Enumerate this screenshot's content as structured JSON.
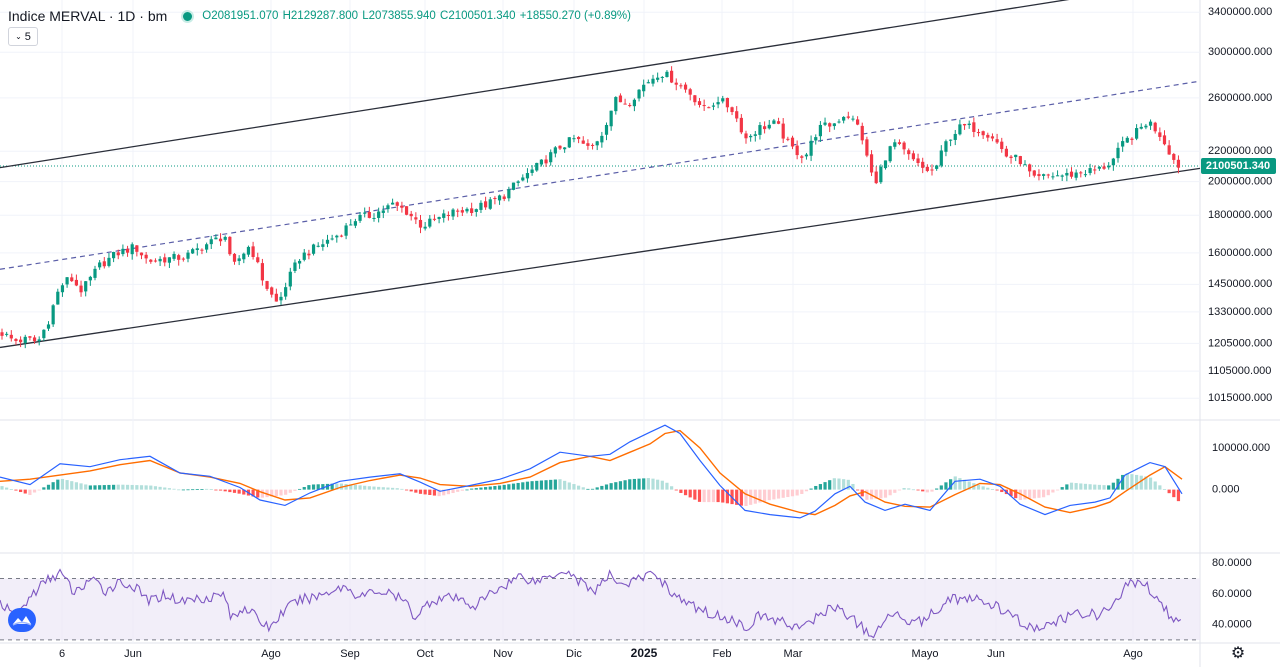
{
  "header": {
    "symbol": "Indice MERVAL",
    "interval": "1D",
    "exchange": "bm",
    "open": "O2081951.070",
    "high": "H2129287.800",
    "low": "L2073855.940",
    "close": "C2100501.340",
    "change": "+18550.270 (+0.89%)",
    "indicator_count": "5"
  },
  "colors": {
    "up": "#089981",
    "down": "#f23645",
    "macd_line": "#2962ff",
    "signal_line": "#ff6d00",
    "rsi_line": "#7e57c2",
    "rsi_band": "#ede7f6",
    "channel": "#2a2e39",
    "midline": "#5b5fa8"
  },
  "chart_data": [
    {
      "type": "candlestick",
      "y_scale": "log",
      "ylim": [
        960000,
        3500000
      ],
      "x_axis_ticks": [
        "6",
        "Jun",
        "Ago",
        "Sep",
        "Oct",
        "Nov",
        "Dic",
        "2025",
        "Feb",
        "Mar",
        "Mayo",
        "Jun",
        "Ago"
      ],
      "y_axis_ticks": [
        "3400000.000",
        "3000000.000",
        "2600000.000",
        "2200000.000",
        "2000000.000",
        "1800000.000",
        "1600000.000",
        "1450000.000",
        "1330000.000",
        "1205000.000",
        "1105000.000",
        "1015000.000"
      ],
      "last_price_label": "2100501.340",
      "close_path": [
        [
          0,
          1250000
        ],
        [
          14,
          1215000
        ],
        [
          28,
          1220000
        ],
        [
          38,
          1210000
        ],
        [
          48,
          1290000
        ],
        [
          60,
          1440000
        ],
        [
          70,
          1480000
        ],
        [
          82,
          1420000
        ],
        [
          100,
          1540000
        ],
        [
          118,
          1600000
        ],
        [
          135,
          1630000
        ],
        [
          148,
          1560000
        ],
        [
          165,
          1570000
        ],
        [
          185,
          1580000
        ],
        [
          205,
          1640000
        ],
        [
          225,
          1690000
        ],
        [
          232,
          1520000
        ],
        [
          240,
          1580000
        ],
        [
          250,
          1640000
        ],
        [
          262,
          1480000
        ],
        [
          270,
          1410000
        ],
        [
          278,
          1360000
        ],
        [
          286,
          1450000
        ],
        [
          300,
          1580000
        ],
        [
          320,
          1640000
        ],
        [
          340,
          1700000
        ],
        [
          355,
          1780000
        ],
        [
          372,
          1800000
        ],
        [
          392,
          1860000
        ],
        [
          405,
          1830000
        ],
        [
          422,
          1740000
        ],
        [
          438,
          1780000
        ],
        [
          455,
          1820000
        ],
        [
          475,
          1840000
        ],
        [
          490,
          1870000
        ],
        [
          505,
          1920000
        ],
        [
          522,
          2020000
        ],
        [
          540,
          2110000
        ],
        [
          560,
          2230000
        ],
        [
          575,
          2290000
        ],
        [
          590,
          2210000
        ],
        [
          602,
          2330000
        ],
        [
          615,
          2580000
        ],
        [
          628,
          2560000
        ],
        [
          645,
          2720000
        ],
        [
          660,
          2820000
        ],
        [
          672,
          2760000
        ],
        [
          690,
          2640000
        ],
        [
          705,
          2500000
        ],
        [
          718,
          2590000
        ],
        [
          732,
          2510000
        ],
        [
          746,
          2290000
        ],
        [
          760,
          2370000
        ],
        [
          776,
          2400000
        ],
        [
          790,
          2230000
        ],
        [
          805,
          2160000
        ],
        [
          818,
          2360000
        ],
        [
          834,
          2400000
        ],
        [
          846,
          2480000
        ],
        [
          860,
          2360000
        ],
        [
          868,
          2120000
        ],
        [
          876,
          1980000
        ],
        [
          884,
          2150000
        ],
        [
          894,
          2260000
        ],
        [
          906,
          2180000
        ],
        [
          920,
          2090000
        ],
        [
          934,
          2060000
        ],
        [
          948,
          2290000
        ],
        [
          962,
          2380000
        ],
        [
          978,
          2360000
        ],
        [
          992,
          2310000
        ],
        [
          1006,
          2170000
        ],
        [
          1020,
          2140000
        ],
        [
          1034,
          2010000
        ],
        [
          1050,
          2040000
        ],
        [
          1066,
          2040000
        ],
        [
          1082,
          2060000
        ],
        [
          1100,
          2080000
        ],
        [
          1112,
          2130000
        ],
        [
          1124,
          2260000
        ],
        [
          1136,
          2330000
        ],
        [
          1148,
          2420000
        ],
        [
          1160,
          2320000
        ],
        [
          1168,
          2220000
        ],
        [
          1176,
          2110000
        ],
        [
          1182,
          2100501
        ]
      ],
      "channel": {
        "lower": [
          [
            0,
            1190000
          ],
          [
            1200,
            2085000
          ]
        ],
        "upper": [
          [
            0,
            2090000
          ],
          [
            1092,
            3580000
          ]
        ],
        "mid": [
          [
            0,
            1520000
          ],
          [
            1200,
            2740000
          ]
        ]
      }
    },
    {
      "type": "macd",
      "ylim": [
        -150000,
        165000
      ],
      "y_axis_ticks": [
        "100000.000",
        "0.000"
      ],
      "macd": [
        [
          0,
          30000
        ],
        [
          30,
          12000
        ],
        [
          60,
          62000
        ],
        [
          90,
          55000
        ],
        [
          120,
          72000
        ],
        [
          150,
          80000
        ],
        [
          180,
          40000
        ],
        [
          210,
          32000
        ],
        [
          240,
          5000
        ],
        [
          260,
          -25000
        ],
        [
          285,
          -38000
        ],
        [
          310,
          -8000
        ],
        [
          340,
          20000
        ],
        [
          370,
          30000
        ],
        [
          400,
          38000
        ],
        [
          420,
          18000
        ],
        [
          440,
          -4000
        ],
        [
          470,
          10000
        ],
        [
          500,
          25000
        ],
        [
          530,
          50000
        ],
        [
          560,
          90000
        ],
        [
          590,
          80000
        ],
        [
          610,
          85000
        ],
        [
          630,
          115000
        ],
        [
          650,
          138000
        ],
        [
          665,
          155000
        ],
        [
          680,
          135000
        ],
        [
          700,
          70000
        ],
        [
          720,
          10000
        ],
        [
          745,
          -50000
        ],
        [
          770,
          -60000
        ],
        [
          800,
          -68000
        ],
        [
          815,
          -52000
        ],
        [
          835,
          -10000
        ],
        [
          850,
          8000
        ],
        [
          865,
          -30000
        ],
        [
          885,
          -50000
        ],
        [
          905,
          -35000
        ],
        [
          930,
          -50000
        ],
        [
          955,
          20000
        ],
        [
          980,
          25000
        ],
        [
          1000,
          8000
        ],
        [
          1020,
          -35000
        ],
        [
          1045,
          -60000
        ],
        [
          1070,
          -38000
        ],
        [
          1095,
          -30000
        ],
        [
          1110,
          -20000
        ],
        [
          1125,
          35000
        ],
        [
          1150,
          65000
        ],
        [
          1165,
          55000
        ],
        [
          1182,
          -10000
        ]
      ],
      "signal": [
        [
          0,
          20000
        ],
        [
          30,
          25000
        ],
        [
          60,
          35000
        ],
        [
          90,
          45000
        ],
        [
          120,
          60000
        ],
        [
          150,
          70000
        ],
        [
          180,
          40000
        ],
        [
          210,
          30000
        ],
        [
          240,
          15000
        ],
        [
          260,
          -5000
        ],
        [
          285,
          -25000
        ],
        [
          310,
          -20000
        ],
        [
          340,
          5000
        ],
        [
          370,
          22000
        ],
        [
          400,
          35000
        ],
        [
          420,
          28000
        ],
        [
          440,
          12000
        ],
        [
          470,
          8000
        ],
        [
          500,
          15000
        ],
        [
          530,
          30000
        ],
        [
          560,
          65000
        ],
        [
          590,
          80000
        ],
        [
          610,
          70000
        ],
        [
          630,
          90000
        ],
        [
          650,
          110000
        ],
        [
          665,
          135000
        ],
        [
          680,
          142000
        ],
        [
          700,
          100000
        ],
        [
          720,
          40000
        ],
        [
          745,
          -10000
        ],
        [
          770,
          -35000
        ],
        [
          800,
          -55000
        ],
        [
          815,
          -60000
        ],
        [
          835,
          -38000
        ],
        [
          850,
          -15000
        ],
        [
          865,
          -5000
        ],
        [
          885,
          -30000
        ],
        [
          905,
          -40000
        ],
        [
          930,
          -42000
        ],
        [
          955,
          -12000
        ],
        [
          980,
          15000
        ],
        [
          1000,
          12000
        ],
        [
          1020,
          -10000
        ],
        [
          1045,
          -42000
        ],
        [
          1070,
          -55000
        ],
        [
          1095,
          -42000
        ],
        [
          1110,
          -30000
        ],
        [
          1125,
          -5000
        ],
        [
          1150,
          35000
        ],
        [
          1165,
          55000
        ],
        [
          1182,
          25000
        ]
      ]
    },
    {
      "type": "rsi",
      "ylim": [
        28,
        86
      ],
      "y_axis_ticks": [
        "80.0000",
        "60.0000",
        "40.0000"
      ],
      "band": [
        30,
        70
      ],
      "rsi": [
        [
          0,
          55
        ],
        [
          15,
          44
        ],
        [
          30,
          58
        ],
        [
          45,
          68
        ],
        [
          60,
          74
        ],
        [
          75,
          60
        ],
        [
          90,
          70
        ],
        [
          105,
          62
        ],
        [
          120,
          68
        ],
        [
          135,
          64
        ],
        [
          150,
          55
        ],
        [
          165,
          60
        ],
        [
          180,
          55
        ],
        [
          195,
          57
        ],
        [
          210,
          58
        ],
        [
          225,
          60
        ],
        [
          230,
          44
        ],
        [
          245,
          52
        ],
        [
          260,
          42
        ],
        [
          270,
          38
        ],
        [
          285,
          50
        ],
        [
          300,
          56
        ],
        [
          315,
          58
        ],
        [
          330,
          62
        ],
        [
          345,
          65
        ],
        [
          360,
          58
        ],
        [
          375,
          62
        ],
        [
          390,
          60
        ],
        [
          405,
          55
        ],
        [
          415,
          45
        ],
        [
          430,
          55
        ],
        [
          445,
          58
        ],
        [
          460,
          56
        ],
        [
          475,
          52
        ],
        [
          490,
          60
        ],
        [
          505,
          66
        ],
        [
          520,
          72
        ],
        [
          535,
          68
        ],
        [
          550,
          72
        ],
        [
          565,
          76
        ],
        [
          580,
          68
        ],
        [
          595,
          62
        ],
        [
          610,
          72
        ],
        [
          625,
          66
        ],
        [
          640,
          70
        ],
        [
          655,
          74
        ],
        [
          670,
          62
        ],
        [
          685,
          54
        ],
        [
          700,
          50
        ],
        [
          715,
          46
        ],
        [
          730,
          44
        ],
        [
          745,
          38
        ],
        [
          760,
          46
        ],
        [
          775,
          43
        ],
        [
          790,
          40
        ],
        [
          805,
          38
        ],
        [
          820,
          47
        ],
        [
          835,
          52
        ],
        [
          850,
          45
        ],
        [
          862,
          38
        ],
        [
          875,
          32
        ],
        [
          890,
          48
        ],
        [
          905,
          44
        ],
        [
          920,
          42
        ],
        [
          935,
          48
        ],
        [
          950,
          58
        ],
        [
          965,
          56
        ],
        [
          980,
          56
        ],
        [
          995,
          52
        ],
        [
          1010,
          46
        ],
        [
          1025,
          40
        ],
        [
          1040,
          36
        ],
        [
          1055,
          42
        ],
        [
          1070,
          45
        ],
        [
          1085,
          48
        ],
        [
          1100,
          46
        ],
        [
          1115,
          54
        ],
        [
          1130,
          68
        ],
        [
          1145,
          66
        ],
        [
          1158,
          58
        ],
        [
          1168,
          48
        ],
        [
          1178,
          40
        ],
        [
          1182,
          42
        ]
      ]
    }
  ]
}
